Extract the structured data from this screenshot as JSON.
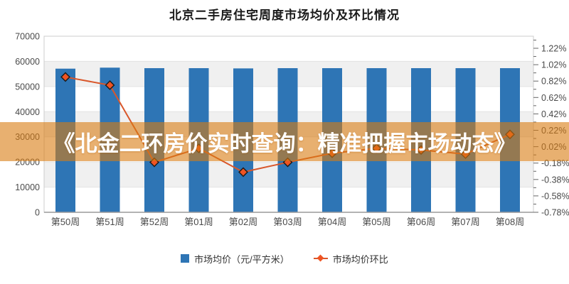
{
  "title": "北京二手房住宅周度市场均价及环比情况",
  "watermark": {
    "text": "《北金二环房价实时查询：精准把握市场动态》",
    "band_color": "rgba(216,124,16,0.60)",
    "text_color": "#ffffff"
  },
  "colors": {
    "bar": "#2e75b5",
    "line": "#d9572b",
    "marker_fill": "#ef5423",
    "marker_stroke": "#1a1a1a",
    "stripe": "#f0f0f0",
    "grid": "#e2e2e2",
    "border": "#cccccc",
    "axis_line": "#9a9a9a",
    "tick": "#666666",
    "label": "#4a4a4a"
  },
  "chart_data": {
    "type": "bar",
    "title": "北京二手房住宅周度市场均价及环比情况",
    "categories": [
      "第50周",
      "第51周",
      "第52周",
      "第01周",
      "第02周",
      "第03周",
      "第04周",
      "第05周",
      "第06周",
      "第07周",
      "第08周"
    ],
    "series": [
      {
        "name": "市场均价（元/平方米）",
        "type": "bar",
        "axis": "left",
        "values": [
          57100,
          57500,
          57300,
          57300,
          57200,
          57300,
          57300,
          57300,
          57300,
          57300,
          57300
        ]
      },
      {
        "name": "市场均价环比",
        "type": "line",
        "axis": "right",
        "unit": "%",
        "values": [
          0.87,
          0.77,
          -0.17,
          0.0,
          -0.29,
          -0.17,
          -0.06,
          0.0,
          -0.02,
          -0.07,
          0.17
        ]
      }
    ],
    "left_axis": {
      "min": 0,
      "max": 70000,
      "step": 10000,
      "labels": [
        "70000",
        "60000",
        "50000",
        "40000",
        "30000",
        "20000",
        "10000",
        "0"
      ]
    },
    "right_axis": {
      "min": -0.78,
      "max": 1.36,
      "step": 0.2,
      "labels": [
        "1.22%",
        "1.02%",
        "0.82%",
        "0.62%",
        "0.42%",
        "0.22%",
        "0.02%",
        "-0.18%",
        "-0.38%",
        "-0.58%",
        "-0.78%"
      ]
    },
    "grid": "horizontal-striped",
    "legend_position": "bottom"
  }
}
